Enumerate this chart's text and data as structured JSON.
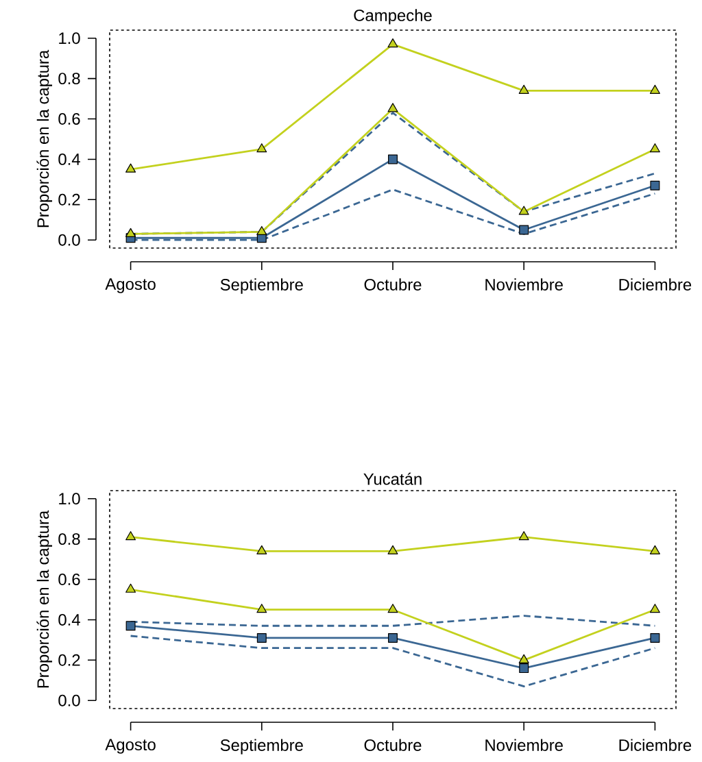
{
  "chart_data": [
    {
      "type": "line",
      "title": "Campeche",
      "ylabel": "Proporción en la captura",
      "categories": [
        "Agosto",
        "Septiembre",
        "Octubre",
        "Noviembre",
        "Diciembre"
      ],
      "ylim": [
        0,
        1.0
      ],
      "yticks": [
        {
          "value": 0,
          "label": "0.0"
        },
        {
          "value": 0.2,
          "label": "0.2"
        },
        {
          "value": 0.4,
          "label": "0.4"
        },
        {
          "value": 0.6,
          "label": "0.6"
        },
        {
          "value": 0.8,
          "label": "0.8"
        },
        {
          "value": 1.0,
          "label": "1.0"
        }
      ],
      "series": [
        {
          "color": "#3b6793",
          "values": [
            0.03,
            0.04,
            0.63,
            0.14,
            0.33
          ],
          "marker": "none",
          "line_style": "dashed"
        },
        {
          "color": "#3b6793",
          "values": [
            0.0,
            0.0,
            0.25,
            0.03,
            0.23
          ],
          "marker": "none",
          "line_style": "dashed"
        },
        {
          "color": "#3b6793",
          "values": [
            0.01,
            0.01,
            0.4,
            0.05,
            0.27
          ],
          "marker": "square",
          "line_style": "solid"
        },
        {
          "color": "#c3d11e",
          "values": [
            0.35,
            0.45,
            0.97,
            0.74,
            0.74
          ],
          "marker": "triangle",
          "line_style": "solid"
        },
        {
          "color": "#c3d11e",
          "values": [
            0.03,
            0.04,
            0.65,
            0.14,
            0.45
          ],
          "marker": "triangle",
          "line_style": "solid"
        }
      ]
    },
    {
      "type": "line",
      "title": "Yucatán",
      "ylabel": "Proporción en la captura",
      "categories": [
        "Agosto",
        "Septiembre",
        "Octubre",
        "Noviembre",
        "Diciembre"
      ],
      "ylim": [
        0,
        1.0
      ],
      "yticks": [
        {
          "value": 0,
          "label": "0.0"
        },
        {
          "value": 0.2,
          "label": "0.2"
        },
        {
          "value": 0.4,
          "label": "0.4"
        },
        {
          "value": 0.6,
          "label": "0.6"
        },
        {
          "value": 0.8,
          "label": "0.8"
        },
        {
          "value": 1.0,
          "label": "1.0"
        }
      ],
      "series": [
        {
          "color": "#3b6793",
          "values": [
            0.39,
            0.37,
            0.37,
            0.42,
            0.37
          ],
          "marker": "none",
          "line_style": "dashed"
        },
        {
          "color": "#3b6793",
          "values": [
            0.32,
            0.26,
            0.26,
            0.07,
            0.26
          ],
          "marker": "none",
          "line_style": "dashed"
        },
        {
          "color": "#3b6793",
          "values": [
            0.37,
            0.31,
            0.31,
            0.16,
            0.31
          ],
          "marker": "square",
          "line_style": "solid"
        },
        {
          "color": "#c3d11e",
          "values": [
            0.81,
            0.74,
            0.74,
            0.81,
            0.74
          ],
          "marker": "triangle",
          "line_style": "solid"
        },
        {
          "color": "#c3d11e",
          "values": [
            0.55,
            0.45,
            0.45,
            0.2,
            0.45
          ],
          "marker": "triangle",
          "line_style": "solid"
        }
      ]
    }
  ]
}
